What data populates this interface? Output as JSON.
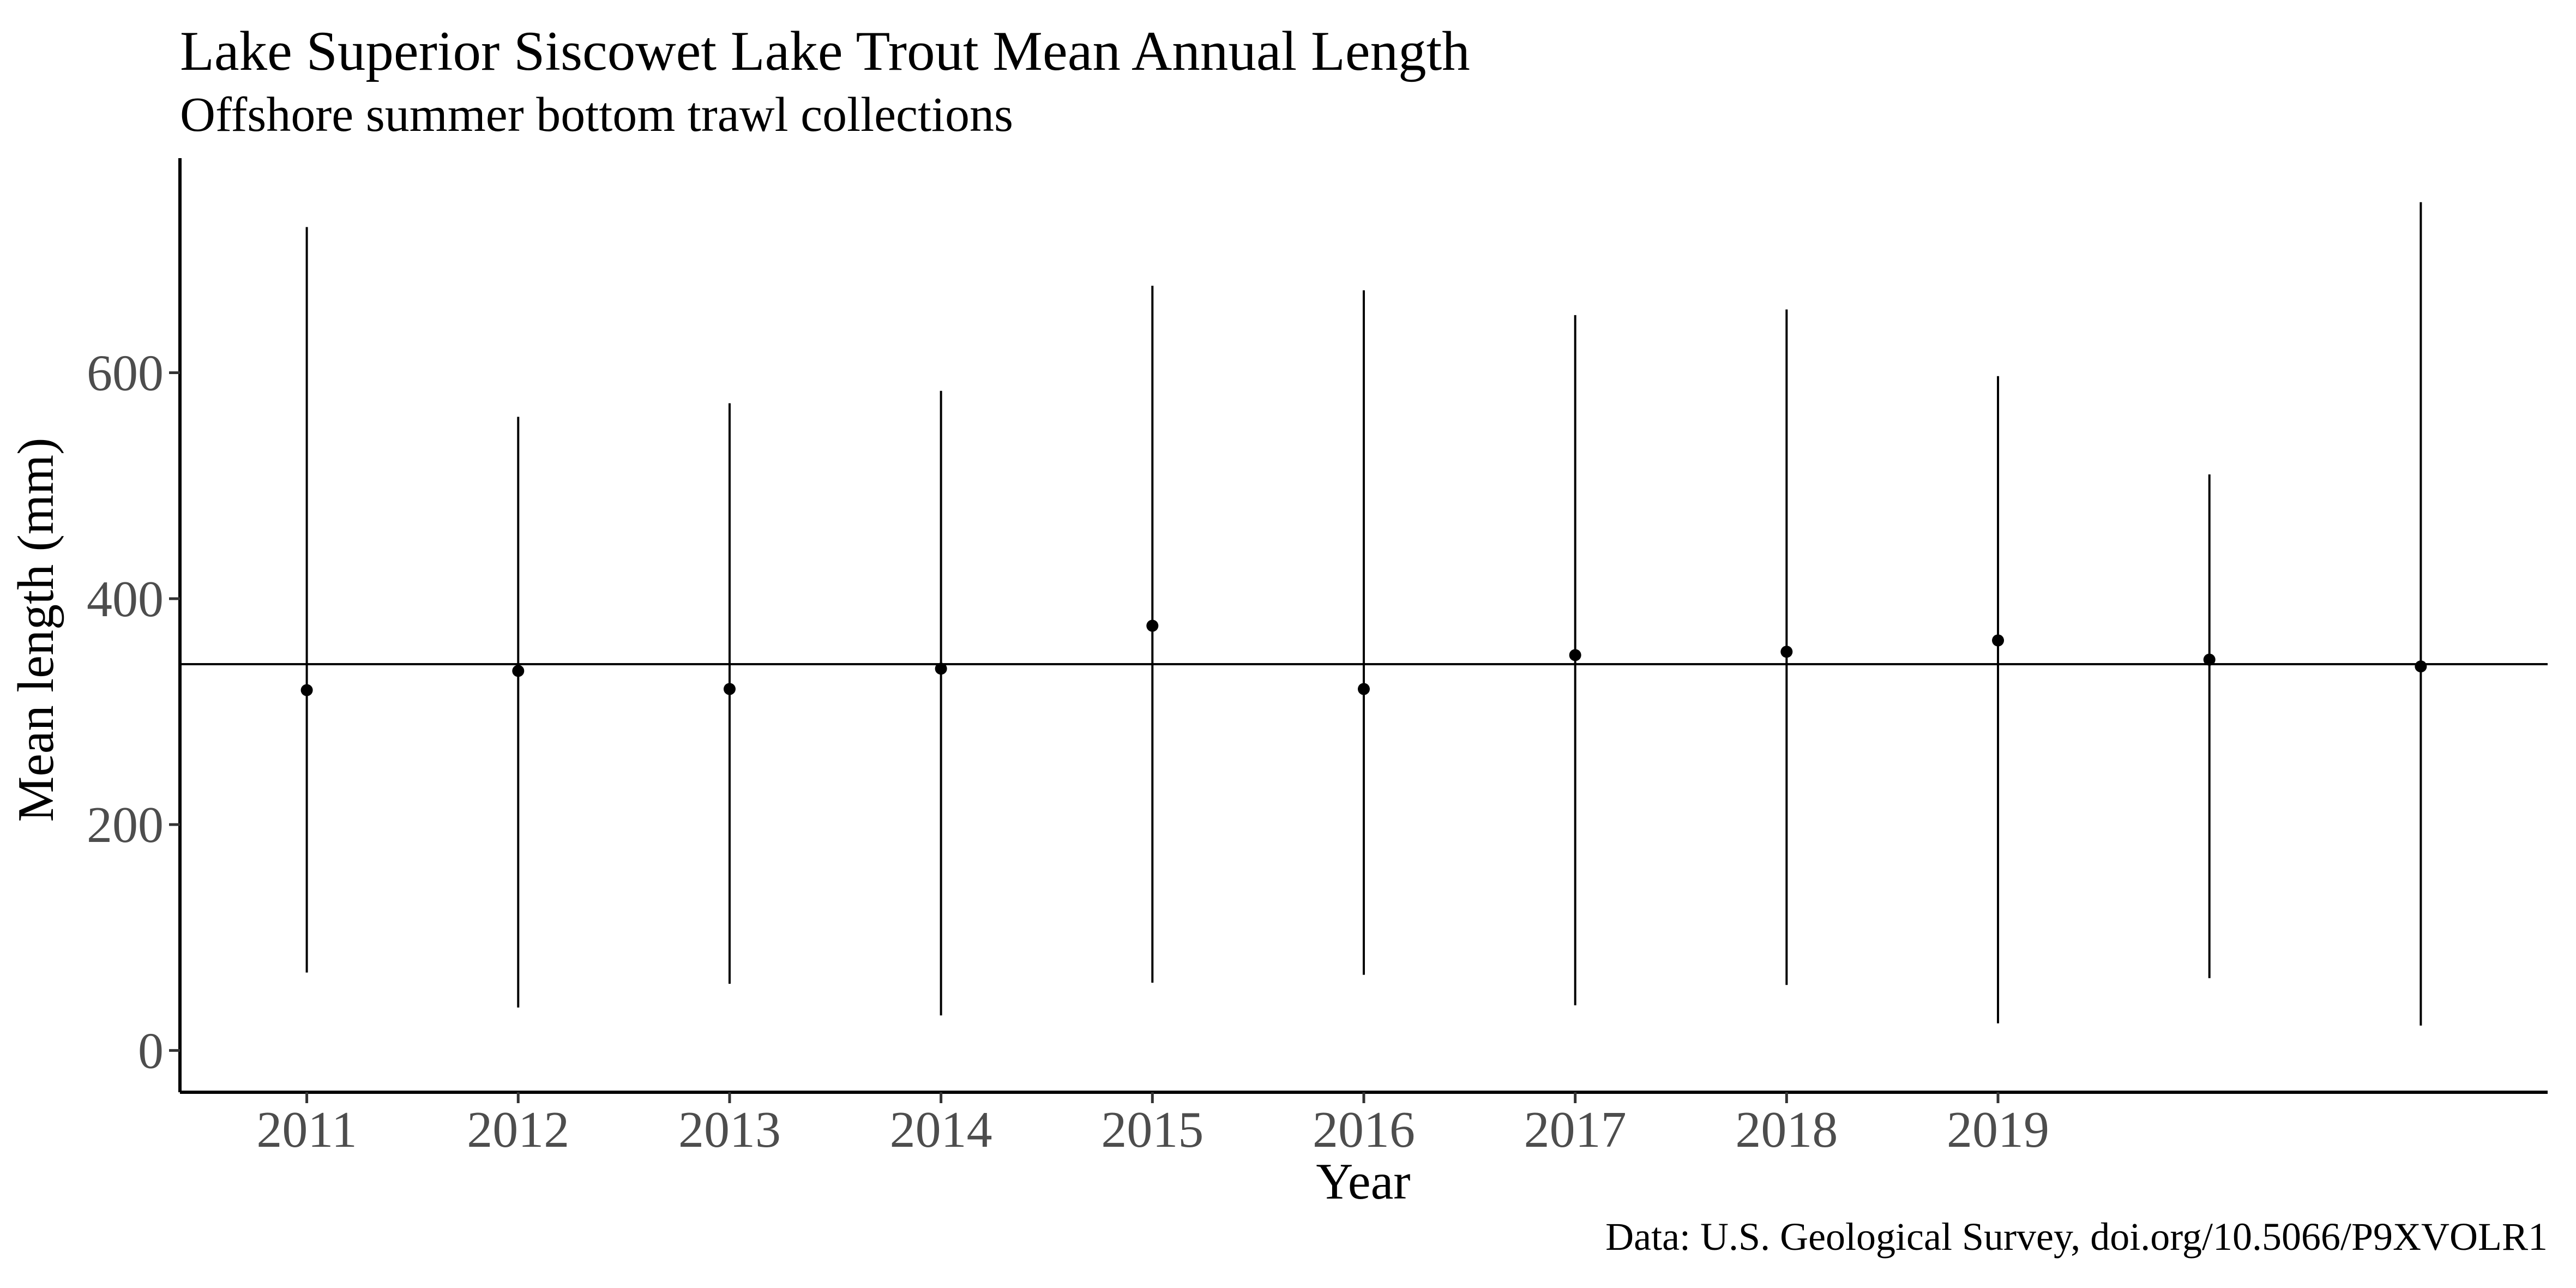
{
  "chart_data": {
    "type": "scatter",
    "title": "Lake Superior Siscowet Lake Trout Mean Annual Length",
    "subtitle": "Offshore summer bottom trawl collections",
    "xlabel": "Year",
    "ylabel": "Mean length (mm)",
    "caption": "Data: U.S. Geological Survey, doi.org/10.5066/P9XVOLR1",
    "x_ticks": [
      "2011",
      "2012",
      "2013",
      "2014",
      "2015",
      "2016",
      "2017",
      "2018",
      "2019"
    ],
    "y_ticks": [
      "0",
      "200",
      "400",
      "600"
    ],
    "xlim": [
      2010.4,
      2021.6
    ],
    "ylim": [
      -37,
      790
    ],
    "reference_line": {
      "y": 342
    },
    "grid": false,
    "legend": "none",
    "series": [
      {
        "points": [
          {
            "x": 2011,
            "y": 319,
            "ymin": 69,
            "ymax": 729
          },
          {
            "x": 2012,
            "y": 336,
            "ymin": 38,
            "ymax": 561
          },
          {
            "x": 2013,
            "y": 320,
            "ymin": 59,
            "ymax": 573
          },
          {
            "x": 2014,
            "y": 338,
            "ymin": 31,
            "ymax": 584
          },
          {
            "x": 2015,
            "y": 376,
            "ymin": 60,
            "ymax": 677
          },
          {
            "x": 2016,
            "y": 320,
            "ymin": 67,
            "ymax": 673
          },
          {
            "x": 2017,
            "y": 350,
            "ymin": 40,
            "ymax": 651
          },
          {
            "x": 2018,
            "y": 353,
            "ymin": 58,
            "ymax": 656
          },
          {
            "x": 2019,
            "y": 363,
            "ymin": 24,
            "ymax": 597
          },
          {
            "x": 2020,
            "y": 346,
            "ymin": 64,
            "ymax": 510
          },
          {
            "x": 2021,
            "y": 340,
            "ymin": 22,
            "ymax": 751
          }
        ]
      }
    ],
    "colors": {
      "point": "#000000",
      "line": "#000000",
      "tick_label": "#4d4d4d",
      "background": "#ffffff"
    }
  }
}
